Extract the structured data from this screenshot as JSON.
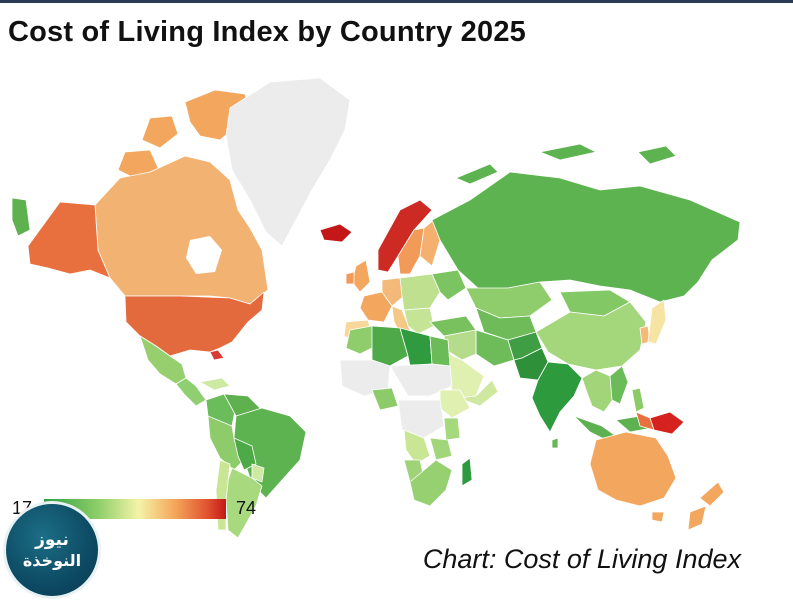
{
  "title": "Cost of Living Index by Country 2025",
  "credit": "Chart: Cost of Living Index",
  "legend": {
    "min": "17",
    "max": "74"
  },
  "logo": {
    "line1": "نيوز",
    "line2": "النوخذة"
  },
  "colors": {
    "ocean": "#ffffff",
    "no_data": "#ececec",
    "scale_low": "#2e9e3f",
    "scale_mid": "#f4f3a8",
    "scale_high": "#c41818"
  },
  "countries": [
    {
      "name": "Canada",
      "value": 58
    },
    {
      "name": "United States",
      "value": 66
    },
    {
      "name": "Alaska",
      "value": 66
    },
    {
      "name": "Greenland",
      "value": null
    },
    {
      "name": "Iceland",
      "value": 74
    },
    {
      "name": "Norway",
      "value": 72
    },
    {
      "name": "Russia",
      "value": 32
    },
    {
      "name": "China",
      "value": 38
    },
    {
      "name": "India",
      "value": 20
    },
    {
      "name": "Pakistan",
      "value": 18
    },
    {
      "name": "Australia",
      "value": 58
    },
    {
      "name": "Brazil",
      "value": 30
    },
    {
      "name": "Argentina",
      "value": 40
    },
    {
      "name": "Papua New Guinea",
      "value": 70
    },
    {
      "name": "Japan",
      "value": 50
    },
    {
      "name": "Saudi Arabia",
      "value": 45
    }
  ]
}
